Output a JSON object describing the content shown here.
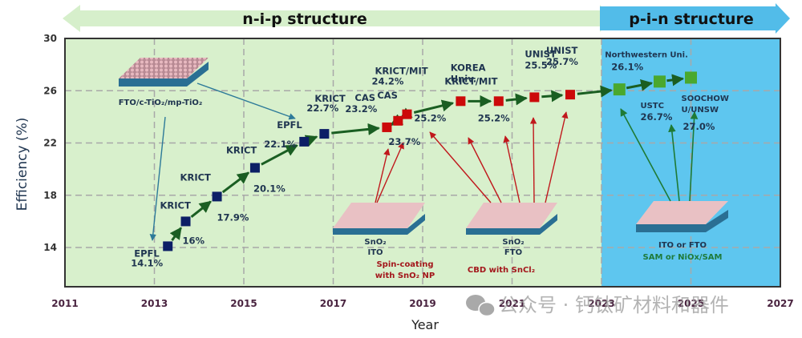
{
  "chart_data": {
    "type": "scatter",
    "title": "",
    "xlabel": "Year",
    "ylabel": "Efficiency (%)",
    "xlim": [
      2011,
      2027
    ],
    "ylim": [
      11,
      30
    ],
    "x_ticks": [
      "2011",
      "2013",
      "2015",
      "2017",
      "2019",
      "2021",
      "2023",
      "2025",
      "2027"
    ],
    "y_ticks": [
      "14",
      "18",
      "22",
      "26",
      "30"
    ],
    "grid": true,
    "banners": {
      "nip": "n-i-p   structure",
      "pin": "p-i-n  structure"
    },
    "regions": [
      {
        "name": "n-i-p",
        "x_range": [
          2011,
          2023
        ],
        "color": "#d8f0cc"
      },
      {
        "name": "p-i-n",
        "x_range": [
          2023,
          2027
        ],
        "color": "#5ec6ef"
      }
    ],
    "series": [
      {
        "name": "n-i-p FTO/c-TiO2/mp-TiO2",
        "color": "#0c1f66",
        "points": [
          {
            "x": 2013.3,
            "y": 14.1,
            "inst": "EPFL",
            "label": "14.1%"
          },
          {
            "x": 2013.7,
            "y": 16.0,
            "inst": "KRICT",
            "label": "16%"
          },
          {
            "x": 2014.4,
            "y": 17.9,
            "inst": "KRICT",
            "label": "17.9%"
          },
          {
            "x": 2015.25,
            "y": 20.1,
            "inst": "KRICT",
            "label": "20.1%"
          },
          {
            "x": 2016.35,
            "y": 22.1,
            "inst": "EPFL",
            "label": "22.1%"
          },
          {
            "x": 2016.8,
            "y": 22.7,
            "inst": "KRICT",
            "label": "22.7%"
          }
        ]
      },
      {
        "name": "n-i-p SnO2",
        "color": "#cc0a0a",
        "points": [
          {
            "x": 2018.2,
            "y": 23.2,
            "inst": "CAS",
            "label": "23.2%"
          },
          {
            "x": 2018.45,
            "y": 23.7,
            "inst": "CAS",
            "label": "23.7%"
          },
          {
            "x": 2018.65,
            "y": 24.2,
            "inst": "KRICT/MIT",
            "label": "24.2%"
          },
          {
            "x": 2019.85,
            "y": 25.2,
            "inst": "KRICT/MIT",
            "label": "25.2%"
          },
          {
            "x": 2020.7,
            "y": 25.2,
            "inst": "KOREA Univ.",
            "label": "25.2%"
          },
          {
            "x": 2021.5,
            "y": 25.5,
            "inst": "UNIST",
            "label": "25.5%"
          },
          {
            "x": 2022.3,
            "y": 25.7,
            "inst": "UNIST",
            "label": "25.7%"
          }
        ]
      },
      {
        "name": "p-i-n",
        "color": "#4aa82e",
        "points": [
          {
            "x": 2023.4,
            "y": 26.1,
            "inst": "Northwestern Uni.",
            "label": "26.1%"
          },
          {
            "x": 2024.3,
            "y": 26.7,
            "inst": "USTC",
            "label": "26.7%"
          },
          {
            "x": 2025.0,
            "y": 27.0,
            "inst": "SOOCHOW U/UNSW",
            "label": "27.0%"
          }
        ]
      }
    ],
    "substrates": {
      "tio2": {
        "label": "FTO/c-TiO₂/mp-TiO₂"
      },
      "sno2_ito": {
        "line1": "SnO₂",
        "line2": "ITO",
        "note1": "Spin-coating",
        "note2": "with SnO₂ NP"
      },
      "sno2_fto": {
        "line1": "SnO₂",
        "line2": "FTO",
        "note1": "CBD with SnCl₂"
      },
      "pin": {
        "line1": "ITO or FTO",
        "note1": "SAM or NiOx/SAM"
      }
    },
    "watermark": "公众号 · 钙钛矿材料和器件"
  }
}
